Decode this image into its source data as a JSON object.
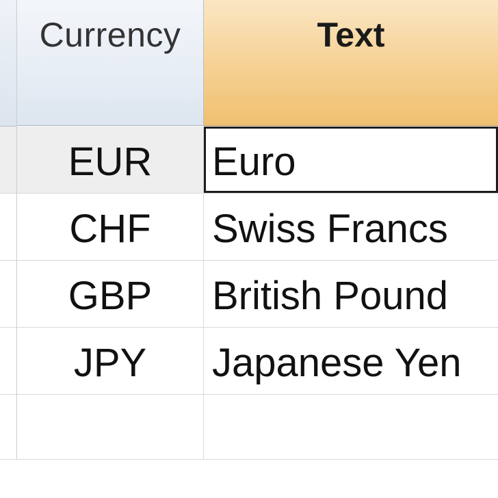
{
  "columns": {
    "currency": "Currency",
    "text": "Text"
  },
  "rows": [
    {
      "code": "EUR",
      "text": "Euro",
      "selected": true
    },
    {
      "code": "CHF",
      "text": "Swiss Francs",
      "selected": false
    },
    {
      "code": "GBP",
      "text": "British Pound",
      "selected": false
    },
    {
      "code": "JPY",
      "text": "Japanese Yen",
      "selected": false
    },
    {
      "code": "",
      "text": "",
      "selected": false
    }
  ],
  "colors": {
    "header_currency_bg": "#e7edf5",
    "header_text_bg": "#f6d49a",
    "selected_row_bg": "#eeeeee",
    "grid_line": "#d6d9dd"
  }
}
